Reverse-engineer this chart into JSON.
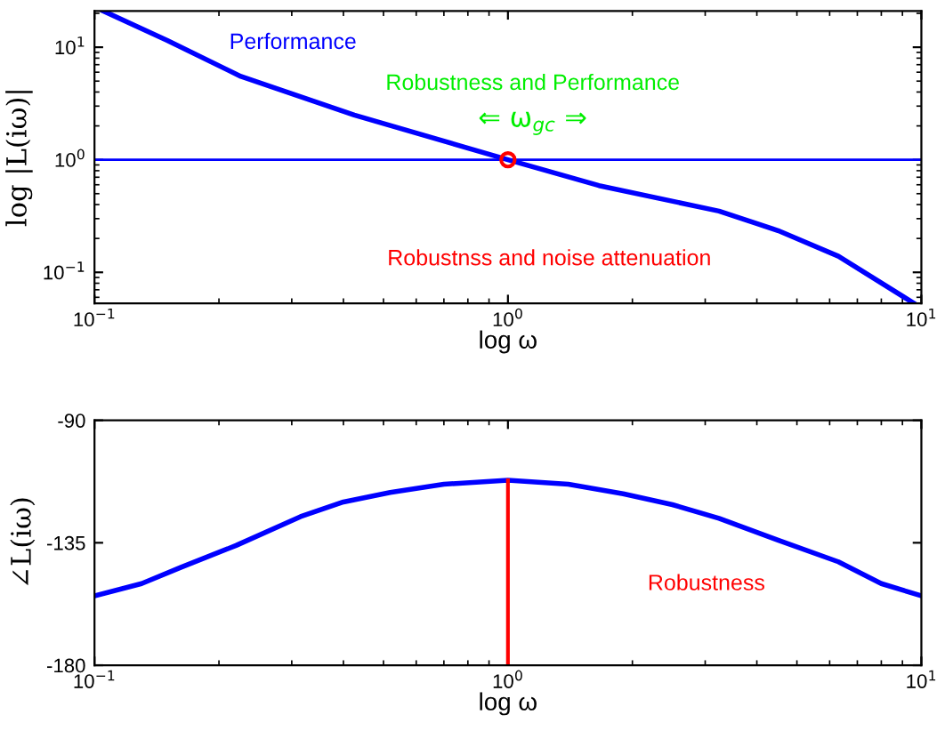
{
  "chart_data": [
    {
      "type": "line",
      "xlabel": "log ω",
      "ylabel": "log |L(iω)|",
      "log": "xy",
      "grid": false,
      "xlim": [
        0.1,
        10
      ],
      "ylim": [
        0.053,
        21
      ],
      "xticks": [
        {
          "value": 0.1,
          "label": "10$^{−1}$"
        },
        {
          "value": 1,
          "label": "10$^{0}$"
        },
        {
          "value": 10,
          "label": "10$^{1}$"
        }
      ],
      "yticks": [
        {
          "value": 0.1,
          "label": "10$^{−1}$"
        },
        {
          "value": 1,
          "label": "10$^{0}$"
        },
        {
          "value": 10,
          "label": "10$^{1}$"
        }
      ],
      "series": [
        {
          "color": "#0000ff",
          "x": [
            0.105,
            0.15,
            0.226,
            0.425,
            1,
            1.66,
            3.24,
            4.5,
            6.3,
            9.6
          ],
          "values": [
            21,
            11.5,
            5.5,
            2.5,
            1,
            0.59,
            0.35,
            0.235,
            0.139,
            0.053
          ]
        },
        {
          "type": "scatter",
          "color": "#ff0000",
          "marker": "circle",
          "x": [
            1
          ],
          "values": [
            1
          ]
        }
      ],
      "ref_lines": [
        {
          "axis": "y",
          "value": 1,
          "color": "#0000ff"
        }
      ],
      "annotations": [
        "Performance",
        "Robustness and Performance",
        "⇐ ω$_{gc}$ ⇒",
        "Robustnss and noise attenuation"
      ]
    },
    {
      "type": "line",
      "xlabel": "log ω",
      "ylabel": "∠L(iω)",
      "log": "x",
      "grid": false,
      "xlim": [
        0.1,
        10
      ],
      "ylim": [
        -180,
        -90
      ],
      "xticks": [
        {
          "value": 0.1,
          "label": "10$^{−1}$"
        },
        {
          "value": 1,
          "label": "10$^{0}$"
        },
        {
          "value": 10,
          "label": "10$^{1}$"
        }
      ],
      "yticks": [
        {
          "value": -180,
          "label": "-180"
        },
        {
          "value": -135,
          "label": "-135"
        },
        {
          "value": -90,
          "label": "-90"
        }
      ],
      "series": [
        {
          "color": "#0000ff",
          "x": [
            0.1,
            0.13,
            0.162,
            0.22,
            0.315,
            0.4,
            0.519,
            0.7,
            1,
            1.4,
            1.9,
            2.5,
            3.24,
            4.5,
            6.3,
            8,
            10
          ],
          "values": [
            -154.5,
            -150,
            -144,
            -136,
            -125.4,
            -120,
            -116.5,
            -113.5,
            -112,
            -113.5,
            -117,
            -121,
            -126,
            -134,
            -142,
            -150,
            -154.5
          ]
        },
        {
          "color": "#ff0000",
          "x": [
            1,
            1
          ],
          "values": [
            -180,
            -112
          ]
        }
      ],
      "annotations": [
        "Robustness"
      ]
    }
  ]
}
